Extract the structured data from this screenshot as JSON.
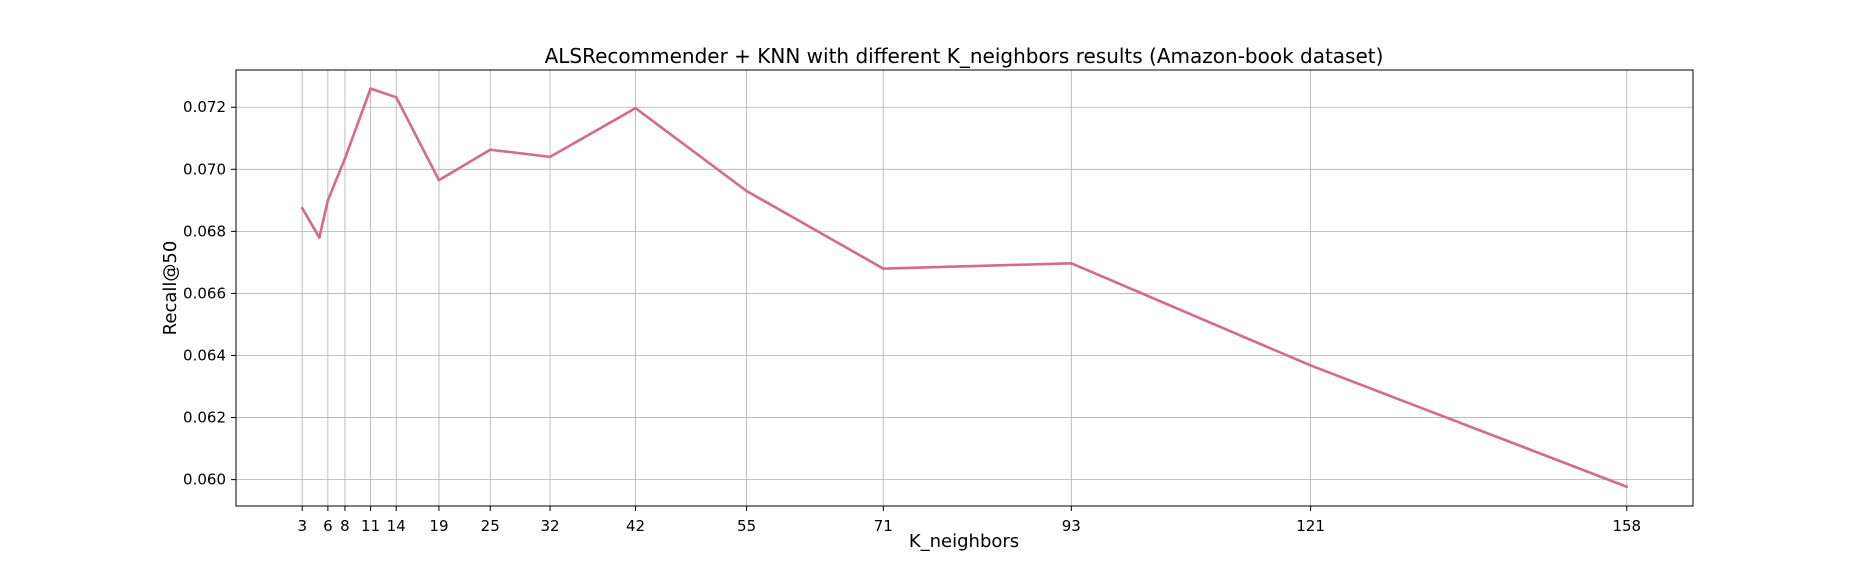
{
  "chart_data": {
    "type": "line",
    "title": "ALSRecommender + KNN with different K_neighbors results (Amazon-book dataset)",
    "xlabel": "K_neighbors",
    "ylabel": "Recall@50",
    "x": [
      3,
      5,
      6,
      8,
      11,
      14,
      19,
      25,
      32,
      42,
      55,
      71,
      93,
      121,
      158
    ],
    "series": [
      {
        "values": [
          0.06875,
          0.0678,
          0.069,
          0.07035,
          0.0726,
          0.07232,
          0.06965,
          0.07063,
          0.0704,
          0.07197,
          0.0693,
          0.0668,
          0.06697,
          0.06368,
          0.05977
        ],
        "color": "#d5698e"
      }
    ],
    "xticks": [
      "3",
      "6",
      "8",
      "11",
      "14",
      "19",
      "25",
      "32",
      "42",
      "55",
      "71",
      "93",
      "121",
      "158"
    ],
    "yticks": [
      "0.060",
      "0.062",
      "0.064",
      "0.066",
      "0.068",
      "0.070",
      "0.072"
    ],
    "xlim": [
      -4.75,
      165.75
    ],
    "ylim": [
      0.05915,
      0.0732
    ],
    "grid": true
  }
}
